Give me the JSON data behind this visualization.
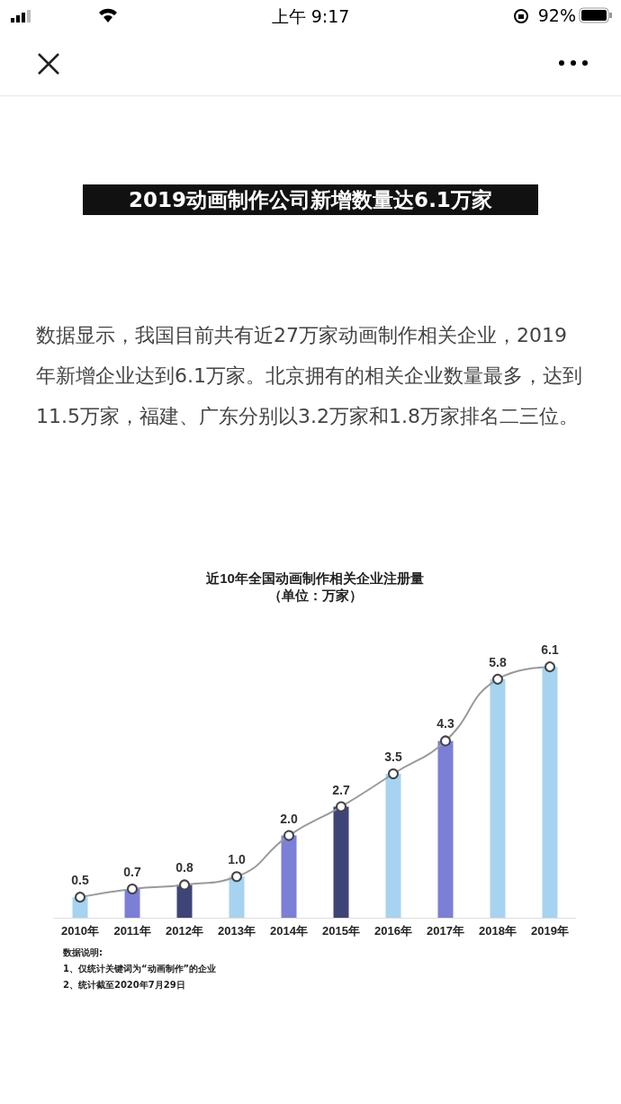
{
  "chart_data": {
    "type": "bar",
    "title": "近10年全国动画制作相关企业注册量",
    "subtitle": "（单位：万家）",
    "categories": [
      "2010年",
      "2011年",
      "2012年",
      "2013年",
      "2014年",
      "2015年",
      "2016年",
      "2017年",
      "2018年",
      "2019年"
    ],
    "series": [
      {
        "colors": [
          "#a6d3ef",
          "#7b7fd6",
          "#3e4576",
          "#a6d3ef",
          "#7b7fd6",
          "#3e4576",
          "#a6d3ef",
          "#7b7fd6",
          "#a6d3ef",
          "#a6d3ef"
        ],
        "values": [
          0.5,
          0.7,
          0.8,
          1.0,
          2.0,
          2.7,
          3.5,
          4.3,
          5.8,
          6.1
        ],
        "value_labels": [
          "0.5",
          "0.7",
          "0.8",
          "1.0",
          "2.0",
          "2.7",
          "3.5",
          "4.3",
          "5.8",
          "6.1"
        ]
      },
      {
        "type": "line",
        "color": "#9a9a9a",
        "values": [
          0.5,
          0.7,
          0.8,
          1.0,
          2.0,
          2.7,
          3.5,
          4.3,
          5.8,
          6.1
        ]
      }
    ],
    "marker": "circle",
    "annotations": [
      "上午 9:17",
      "92%",
      "2019动画制作公司新增数量达6.1万家",
      "数据显示，我国目前共有近27万家动画制作相关企业，2019年新增企业达到6.1万家。北京拥有的相关企业数量最多，达到11.5万家，福建、广东分别以3.2万家和1.8万家排名二三位。",
      "数据说明:",
      "1、仅统计关键词为“动画制作”的企业",
      "2、统计截至2020年7月29日"
    ]
  }
}
